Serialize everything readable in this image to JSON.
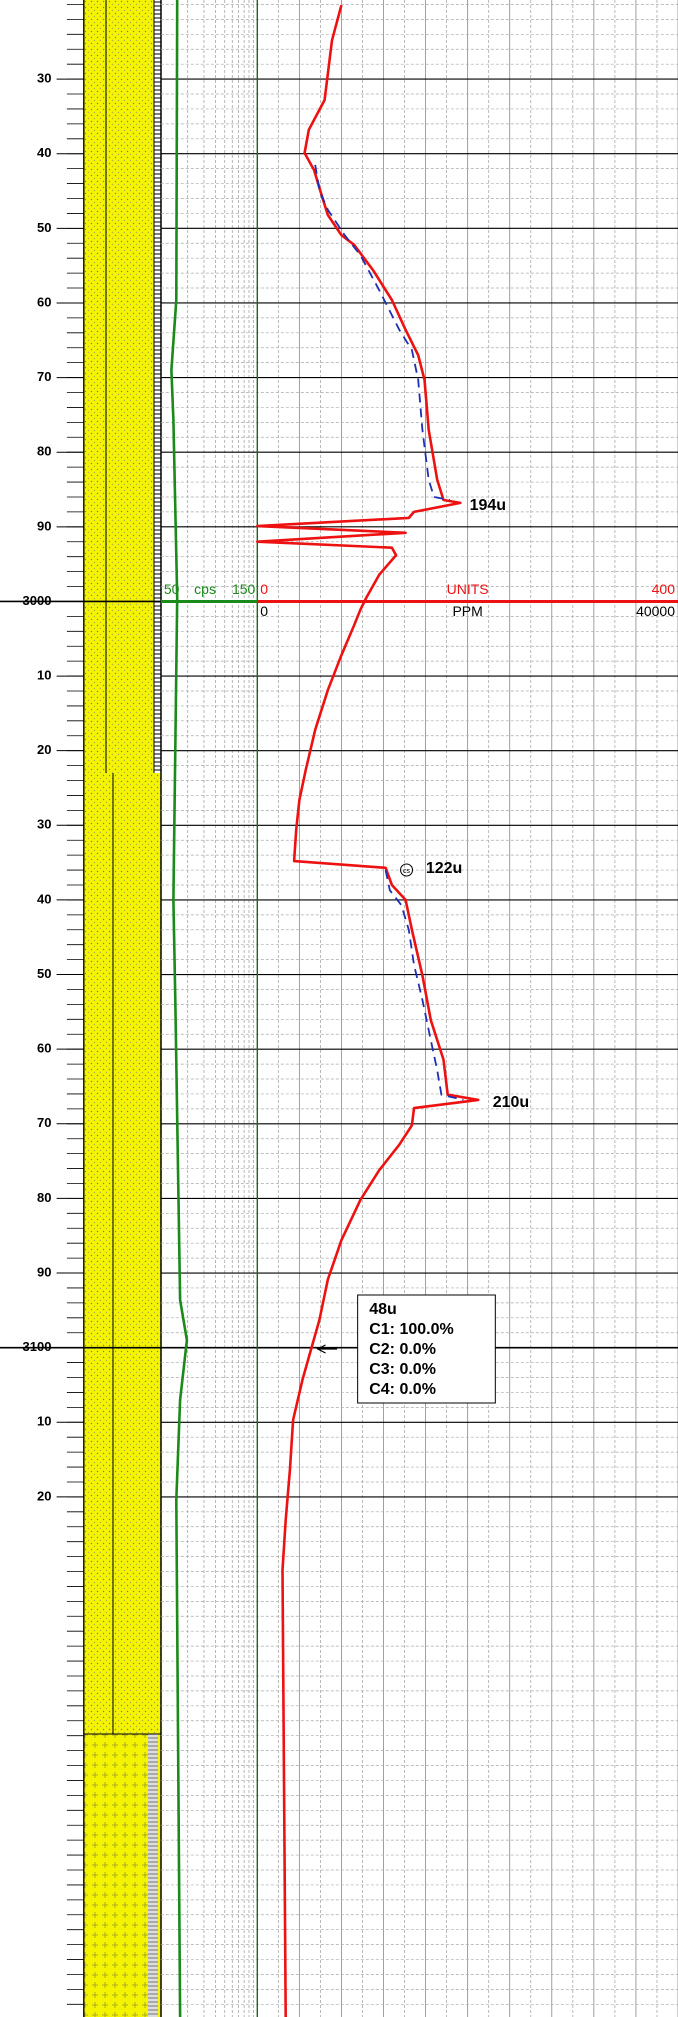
{
  "chart_data": {
    "type": "line",
    "ylim": [
      2919.4,
      3189.7
    ],
    "yticks": [
      {
        "value": 2930,
        "label": "30"
      },
      {
        "value": 2940,
        "label": "40"
      },
      {
        "value": 2950,
        "label": "50"
      },
      {
        "value": 2960,
        "label": "60"
      },
      {
        "value": 2970,
        "label": "70"
      },
      {
        "value": 2980,
        "label": "80"
      },
      {
        "value": 2990,
        "label": "90"
      },
      3000,
      {
        "value": 3010,
        "label": "10"
      },
      {
        "value": 3020,
        "label": "20"
      },
      {
        "value": 3030,
        "label": "30"
      },
      {
        "value": 3040,
        "label": "40"
      },
      {
        "value": 3050,
        "label": "50"
      },
      {
        "value": 3060,
        "label": "60"
      },
      {
        "value": 3070,
        "label": "70"
      },
      {
        "value": 3080,
        "label": "80"
      },
      {
        "value": 3090,
        "label": "90"
      },
      3100,
      {
        "value": 3110,
        "label": "10"
      },
      {
        "value": 3120,
        "label": "20"
      }
    ],
    "grid": true,
    "xlim_gamma": [
      50,
      150
    ],
    "xlim_units": [
      0,
      400
    ],
    "xlim_ppm": [
      0,
      40000
    ],
    "series": [
      {
        "name": "cps",
        "axis": "gamma",
        "color": "#1a8a1a",
        "dash": false,
        "depth": [
          2919.4,
          2959.6,
          2969.0,
          2975.7,
          2999.5,
          3040.0,
          3053.4,
          3093.6,
          3099.0,
          3107.0,
          3120.4,
          3189.7
        ],
        "values": [
          67,
          66,
          61,
          63,
          67,
          63,
          65,
          70,
          77,
          70,
          66,
          70
        ]
      },
      {
        "name": "UNITS",
        "axis": "units",
        "color": "#ee1111",
        "dash": false,
        "depth": [
          2920.1,
          2924.8,
          2932.8,
          2936.8,
          2939.9,
          2942.2,
          2945.5,
          2948.2,
          2950.9,
          2952.2,
          2955.6,
          2959.6,
          2963.6,
          2967.0,
          2970.3,
          2977.0,
          2983.7,
          2986.4,
          2986.8,
          2988.0,
          2988.8,
          2989.9,
          2990.8,
          2992.0,
          2992.8,
          2993.8,
          2996.4,
          2999.4,
          3001.1,
          3003.2,
          3007.2,
          3011.9,
          3017.2,
          3022.6,
          3026.6,
          3030.6,
          3034.8,
          3035.7,
          3038.0,
          3040.0,
          3044.0,
          3050.1,
          3056.1,
          3061.4,
          3066.1,
          3066.8,
          3067.9,
          3070.2,
          3072.8,
          3076.2,
          3080.2,
          3085.6,
          3090.9,
          3096.3,
          3100.3,
          3104.3,
          3109.7,
          3116.4,
          3123.1,
          3129.8,
          3189.7
        ],
        "values": [
          80,
          71,
          64,
          49,
          45,
          54,
          61,
          67,
          80,
          92,
          110,
          128,
          141,
          153,
          159,
          163,
          171,
          177,
          193,
          149,
          144,
          0,
          141,
          0,
          128,
          132,
          116,
          104,
          98,
          92,
          80,
          67,
          55,
          46,
          40,
          37,
          35,
          122,
          128,
          141,
          147,
          157,
          165,
          177,
          181,
          210,
          149,
          147,
          135,
          116,
          98,
          80,
          67,
          59,
          51,
          43,
          34,
          31,
          27,
          24,
          27
        ]
      },
      {
        "name": "PPM",
        "axis": "ppm",
        "color": "#1f2fb5",
        "dash": true,
        "depth": [
          2941.5,
          2944.9,
          2947.5,
          2950.9,
          2953.6,
          2958.3,
          2963.6,
          2966.3,
          2970.3,
          2977.0,
          2983.7,
          2986.0,
          2986.4,
          3000,
          3036.0,
          3038.7,
          3040.7,
          3044.0,
          3048.7,
          3053.4,
          3058.8,
          3062.8,
          3066.1,
          3066.8
        ],
        "values": [
          5500,
          5900,
          6700,
          8300,
          9800,
          11600,
          13500,
          14700,
          15300,
          15700,
          16300,
          16800,
          18300,
          null,
          12200,
          12600,
          13700,
          14400,
          14900,
          15700,
          16500,
          17100,
          17500,
          19600
        ]
      }
    ],
    "annotations": [
      "194u",
      "122u",
      "210u"
    ],
    "marker": "cs",
    "gas_box": [
      "48u",
      "C1: 100.0%",
      "C2: 0.0%",
      "C3: 0.0%",
      "C4: 0.0%"
    ]
  }
}
